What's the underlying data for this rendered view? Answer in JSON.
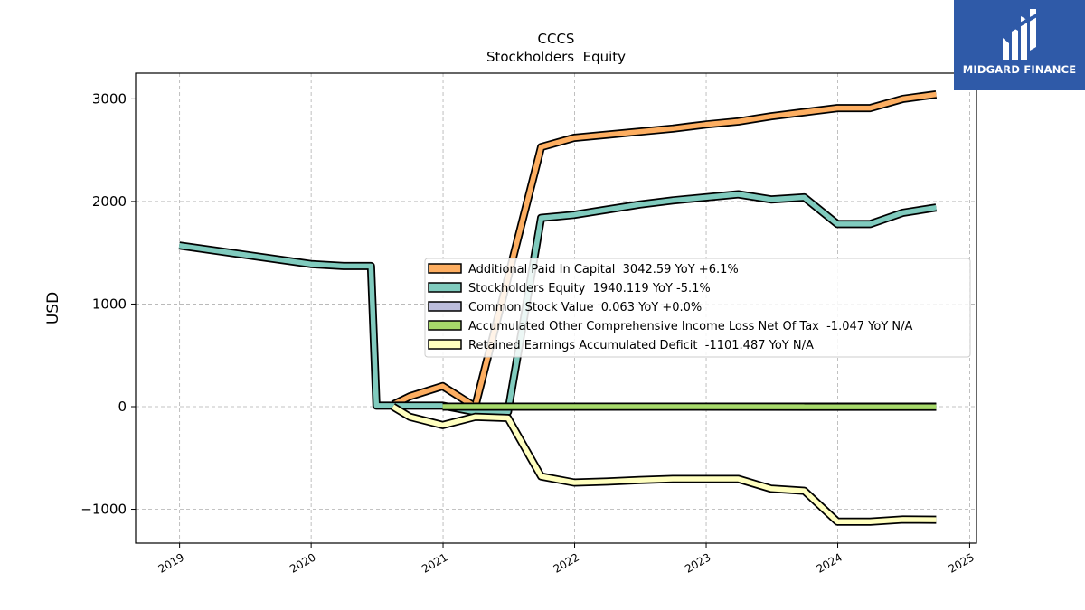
{
  "chart_data": {
    "type": "line",
    "title": "CCCS",
    "subtitle": "Stockholders  Equity",
    "xlabel": "",
    "ylabel": "USD",
    "xlim": [
      "2018-09-01",
      "2025-01-20"
    ],
    "ylim": [
      -1330,
      3250
    ],
    "x_ticks": [
      "2019",
      "2020",
      "2021",
      "2022",
      "2023",
      "2024",
      "2025"
    ],
    "y_ticks": [
      -1000,
      0,
      1000,
      2000,
      3000
    ],
    "y_tick_labels": [
      "−1000",
      "0",
      "1000",
      "2000",
      "3000"
    ],
    "grid": true,
    "legend_position": "center-right",
    "series": [
      {
        "name": "Additional Paid In Capital",
        "legend": "Additional Paid In Capital  3042.59 YoY +6.1%",
        "color": "#fdae61",
        "points": [
          [
            "2020-08-15",
            20
          ],
          [
            "2020-10-01",
            100
          ],
          [
            "2020-12-31",
            200
          ],
          [
            "2021-03-31",
            0
          ],
          [
            "2021-09-30",
            2530
          ],
          [
            "2021-12-31",
            2620
          ],
          [
            "2022-03-31",
            2650
          ],
          [
            "2022-06-30",
            2680
          ],
          [
            "2022-09-30",
            2710
          ],
          [
            "2022-12-31",
            2750
          ],
          [
            "2023-03-31",
            2780
          ],
          [
            "2023-06-30",
            2830
          ],
          [
            "2023-09-30",
            2870
          ],
          [
            "2023-12-31",
            2910
          ],
          [
            "2024-03-31",
            2910
          ],
          [
            "2024-06-30",
            3000
          ],
          [
            "2024-09-30",
            3042.59
          ]
        ]
      },
      {
        "name": "Stockholders Equity",
        "legend": "Stockholders Equity  1940.119 YoY -5.1%",
        "color": "#80cbbe",
        "points": [
          [
            "2018-12-31",
            1570
          ],
          [
            "2019-12-31",
            1390
          ],
          [
            "2020-03-31",
            1370
          ],
          [
            "2020-06-15",
            1370
          ],
          [
            "2020-06-30",
            10
          ],
          [
            "2020-09-30",
            10
          ],
          [
            "2020-12-31",
            10
          ],
          [
            "2021-03-31",
            -50
          ],
          [
            "2021-06-30",
            -50
          ],
          [
            "2021-09-30",
            1840
          ],
          [
            "2021-12-31",
            1870
          ],
          [
            "2022-03-31",
            1920
          ],
          [
            "2022-06-30",
            1970
          ],
          [
            "2022-09-30",
            2010
          ],
          [
            "2022-12-31",
            2040
          ],
          [
            "2023-03-31",
            2070
          ],
          [
            "2023-06-30",
            2020
          ],
          [
            "2023-09-30",
            2040
          ],
          [
            "2023-12-31",
            1780
          ],
          [
            "2024-03-31",
            1780
          ],
          [
            "2024-06-30",
            1890
          ],
          [
            "2024-09-30",
            1940.119
          ]
        ]
      },
      {
        "name": "Common Stock Value",
        "legend": "Common Stock Value  0.063 YoY +0.0%",
        "color": "#bcbddc",
        "points": [
          [
            "2020-12-31",
            0.063
          ],
          [
            "2024-09-30",
            0.063
          ]
        ]
      },
      {
        "name": "Accumulated Other Comprehensive Income Loss Net Of Tax",
        "legend": "Accumulated Other Comprehensive Income Loss Net Of Tax  -1.047 YoY N/A",
        "color": "#a6d96a",
        "points": [
          [
            "2020-12-31",
            0
          ],
          [
            "2024-09-30",
            -1.047
          ]
        ]
      },
      {
        "name": "Retained Earnings Accumulated Deficit",
        "legend": "Retained Earnings Accumulated Deficit  -1101.487 YoY N/A",
        "color": "#ffffbf",
        "points": [
          [
            "2020-08-15",
            0
          ],
          [
            "2020-10-01",
            -100
          ],
          [
            "2020-12-31",
            -180
          ],
          [
            "2021-03-31",
            -100
          ],
          [
            "2021-06-30",
            -110
          ],
          [
            "2021-09-30",
            -680
          ],
          [
            "2021-12-31",
            -740
          ],
          [
            "2022-03-31",
            -730
          ],
          [
            "2022-06-30",
            -715
          ],
          [
            "2022-09-30",
            -705
          ],
          [
            "2022-12-31",
            -705
          ],
          [
            "2023-03-31",
            -705
          ],
          [
            "2023-06-30",
            -800
          ],
          [
            "2023-09-30",
            -820
          ],
          [
            "2023-12-31",
            -1120
          ],
          [
            "2024-03-31",
            -1120
          ],
          [
            "2024-06-30",
            -1100
          ],
          [
            "2024-09-30",
            -1101.487
          ]
        ]
      }
    ]
  },
  "logo": {
    "text": "MIDGARD FINANCE",
    "icon": "midgard-monogram-icon",
    "background": "#2f5aa8"
  }
}
